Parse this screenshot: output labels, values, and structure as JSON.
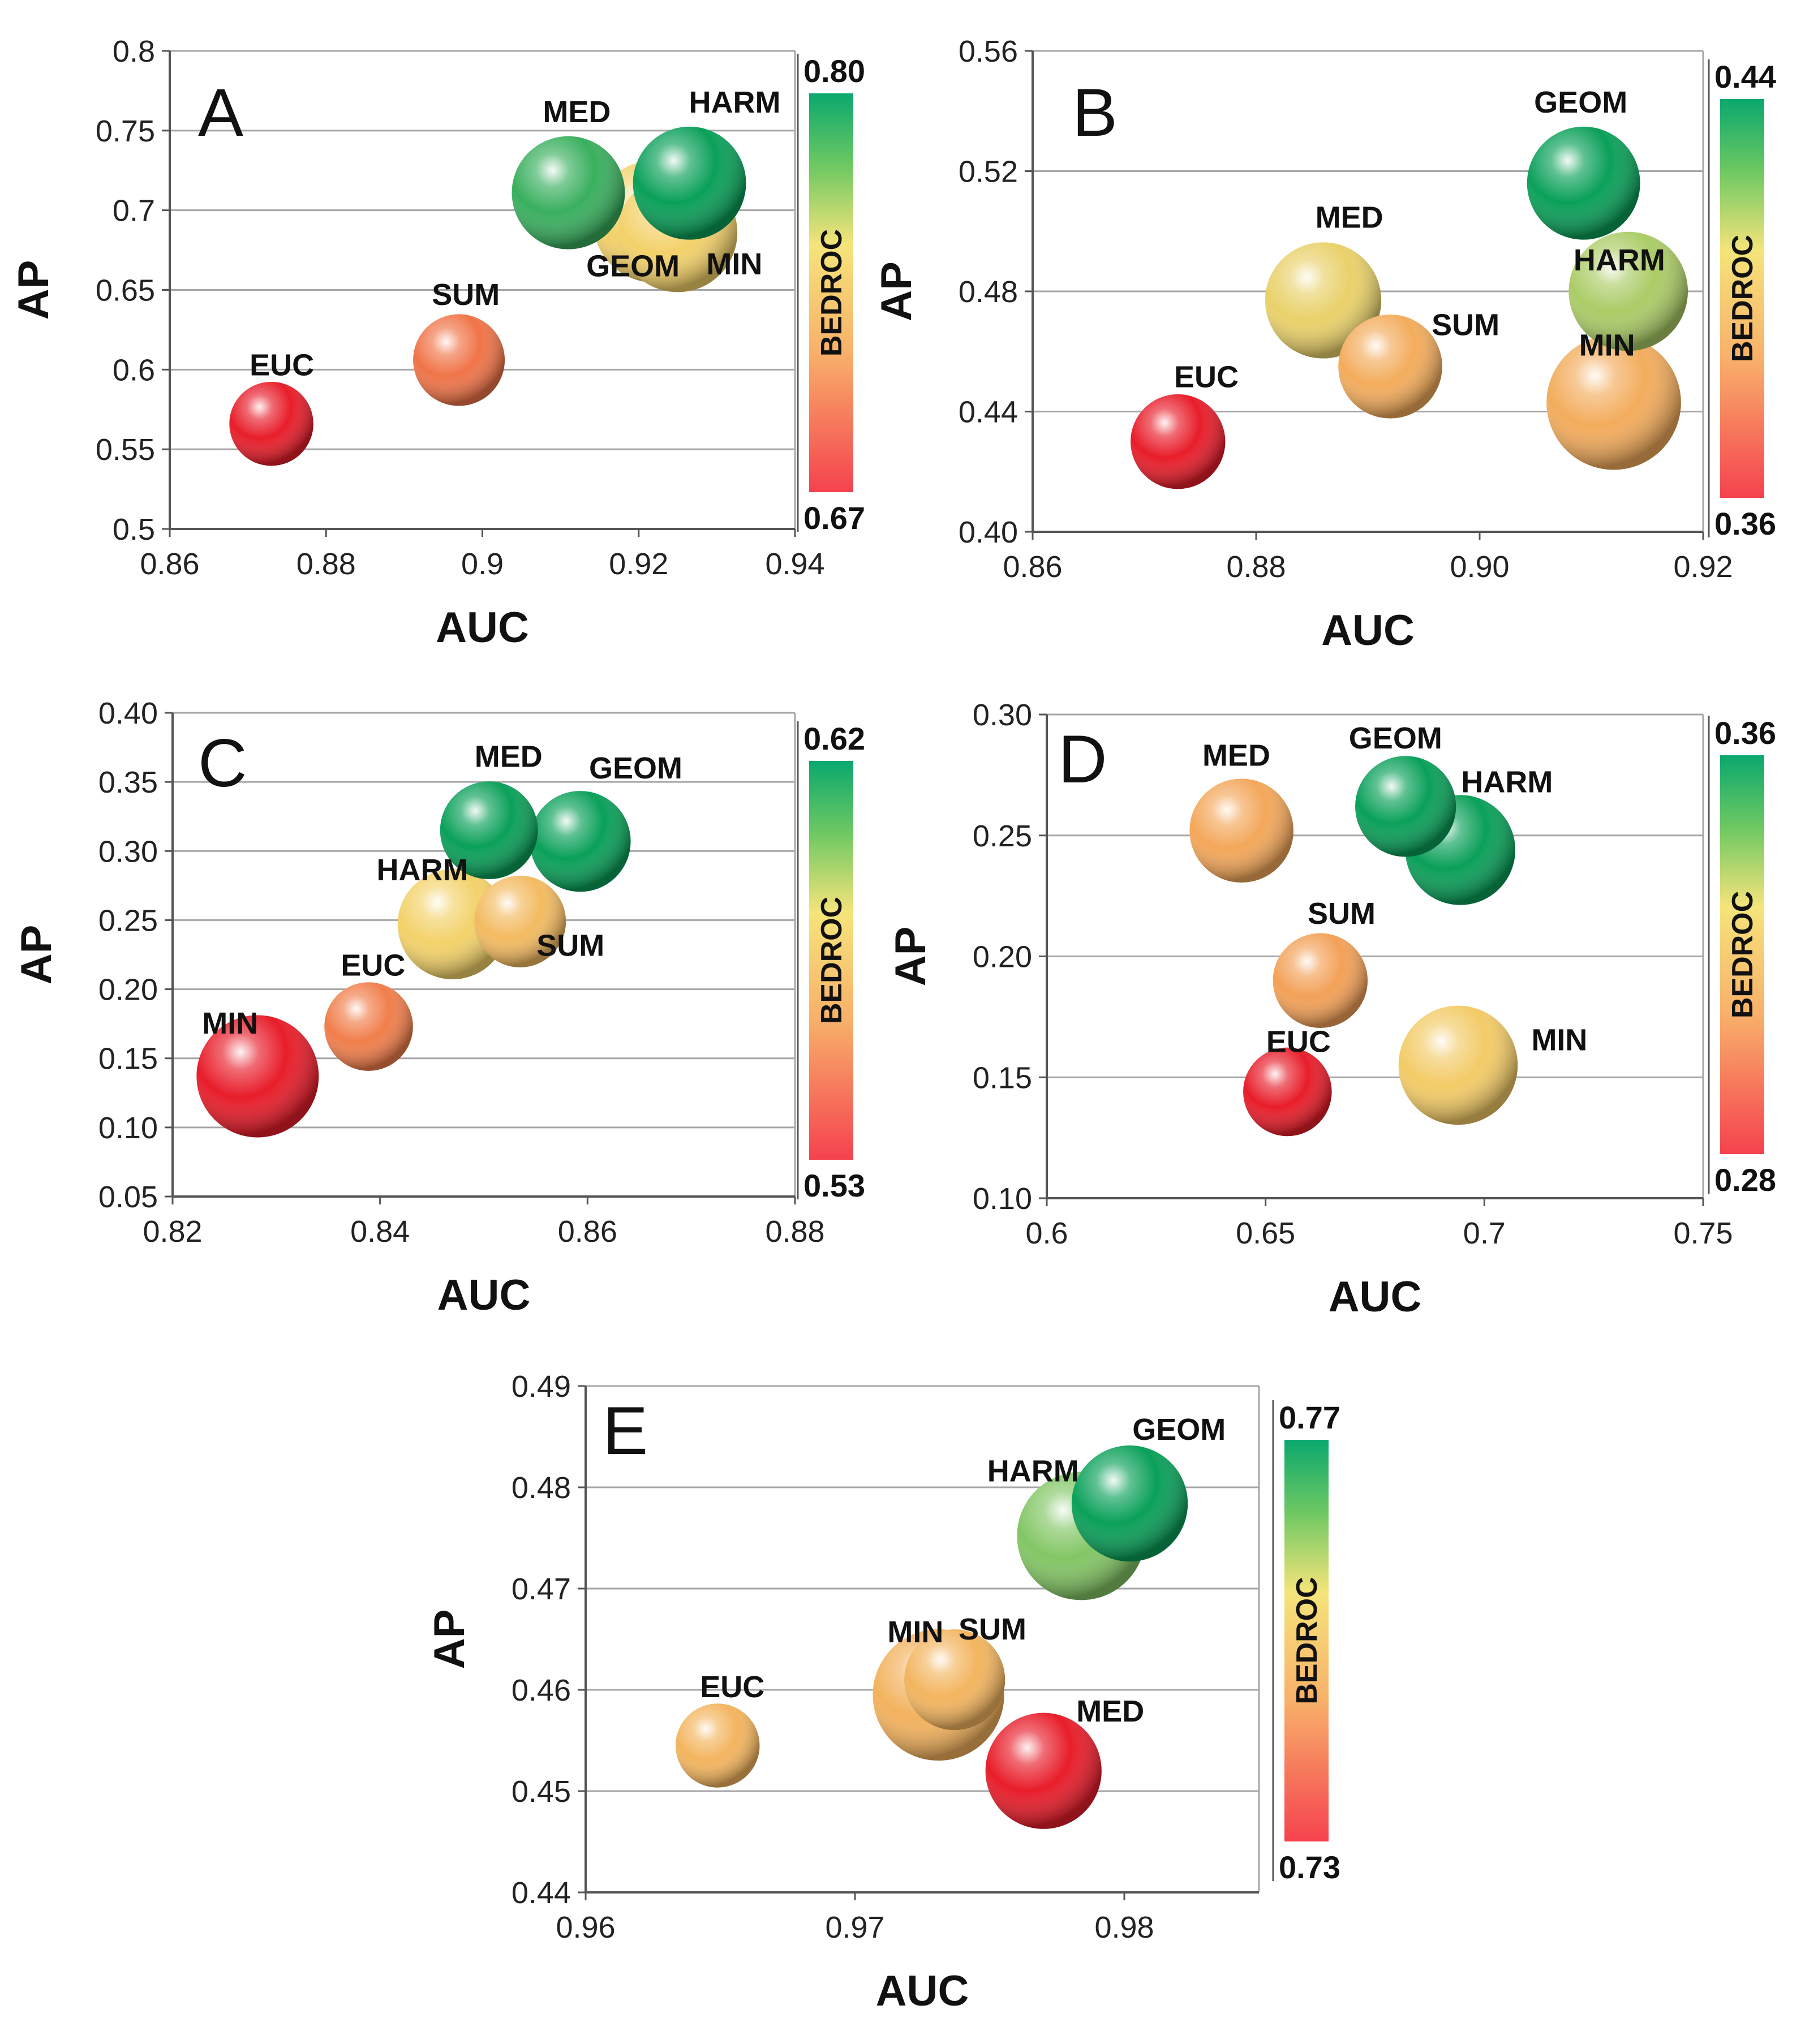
{
  "chart_data": [
    {
      "type": "bubble",
      "panel": "A",
      "xlabel": "AUC",
      "ylabel": "AP",
      "xlim": [
        0.86,
        0.94
      ],
      "ylim": [
        0.5,
        0.8
      ],
      "xticks": [
        "0.86",
        "0.88",
        "0.9",
        "0.92",
        "0.94"
      ],
      "yticks": [
        "0.5",
        "0.55",
        "0.6",
        "0.65",
        "0.7",
        "0.75",
        "0.8"
      ],
      "colorbar": {
        "title": "BEDROC",
        "min": 0.67,
        "max": 0.8,
        "min_label": "0.67",
        "max_label": "0.80"
      },
      "points": [
        {
          "name": "EUC",
          "x": 0.873,
          "y": 0.566,
          "bedroc": 0.67,
          "size": 0.55
        },
        {
          "name": "SUM",
          "x": 0.897,
          "y": 0.606,
          "bedroc": 0.7,
          "size": 0.6
        },
        {
          "name": "MED",
          "x": 0.911,
          "y": 0.711,
          "bedroc": 0.79,
          "size": 0.74
        },
        {
          "name": "GEOM",
          "x": 0.922,
          "y": 0.693,
          "bedroc": 0.745,
          "size": 0.8
        },
        {
          "name": "MIN",
          "x": 0.925,
          "y": 0.686,
          "bedroc": 0.745,
          "size": 0.78
        },
        {
          "name": "HARM",
          "x": 0.9265,
          "y": 0.717,
          "bedroc": 0.8,
          "size": 0.74
        }
      ]
    },
    {
      "type": "bubble",
      "panel": "B",
      "xlabel": "AUC",
      "ylabel": "AP",
      "xlim": [
        0.86,
        0.92
      ],
      "ylim": [
        0.4,
        0.56
      ],
      "xticks": [
        "0.86",
        "0.88",
        "0.90",
        "0.92"
      ],
      "yticks": [
        "0.40",
        "0.44",
        "0.48",
        "0.52",
        "0.56"
      ],
      "colorbar": {
        "title": "BEDROC",
        "min": 0.36,
        "max": 0.44,
        "min_label": "0.36",
        "max_label": "0.44"
      },
      "points": [
        {
          "name": "EUC",
          "x": 0.873,
          "y": 0.43,
          "bedroc": 0.36,
          "size": 0.62
        },
        {
          "name": "SUM",
          "x": 0.892,
          "y": 0.455,
          "bedroc": 0.393,
          "size": 0.68
        },
        {
          "name": "MED",
          "x": 0.886,
          "y": 0.477,
          "bedroc": 0.408,
          "size": 0.76
        },
        {
          "name": "MIN",
          "x": 0.912,
          "y": 0.443,
          "bedroc": 0.393,
          "size": 0.88
        },
        {
          "name": "HARM",
          "x": 0.9133,
          "y": 0.48,
          "bedroc": 0.418,
          "size": 0.78
        },
        {
          "name": "GEOM",
          "x": 0.9093,
          "y": 0.516,
          "bedroc": 0.44,
          "size": 0.74
        }
      ]
    },
    {
      "type": "bubble",
      "panel": "C",
      "xlabel": "AUC",
      "ylabel": "AP",
      "xlim": [
        0.82,
        0.88
      ],
      "ylim": [
        0.05,
        0.4
      ],
      "xticks": [
        "0.82",
        "0.84",
        "0.86",
        "0.88"
      ],
      "yticks": [
        "0.05",
        "0.10",
        "0.15",
        "0.20",
        "0.25",
        "0.30",
        "0.35",
        "0.40"
      ],
      "colorbar": {
        "title": "BEDROC",
        "min": 0.53,
        "max": 0.62,
        "min_label": "0.53",
        "max_label": "0.62"
      },
      "points": [
        {
          "name": "MIN",
          "x": 0.8282,
          "y": 0.137,
          "bedroc": 0.53,
          "size": 0.8
        },
        {
          "name": "EUC",
          "x": 0.8389,
          "y": 0.173,
          "bedroc": 0.553,
          "size": 0.58
        },
        {
          "name": "SUM",
          "x": 0.8535,
          "y": 0.249,
          "bedroc": 0.573,
          "size": 0.6
        },
        {
          "name": "HARM",
          "x": 0.847,
          "y": 0.247,
          "bedroc": 0.582,
          "size": 0.72
        },
        {
          "name": "MED",
          "x": 0.8505,
          "y": 0.315,
          "bedroc": 0.62,
          "size": 0.64
        },
        {
          "name": "GEOM",
          "x": 0.8593,
          "y": 0.307,
          "bedroc": 0.62,
          "size": 0.66
        }
      ]
    },
    {
      "type": "bubble",
      "panel": "D",
      "xlabel": "AUC",
      "ylabel": "AP",
      "xlim": [
        0.6,
        0.75
      ],
      "ylim": [
        0.1,
        0.3
      ],
      "xticks": [
        "0.6",
        "0.65",
        "0.7",
        "0.75"
      ],
      "yticks": [
        "0.10",
        "0.15",
        "0.20",
        "0.25",
        "0.30"
      ],
      "colorbar": {
        "title": "BEDROC",
        "min": 0.28,
        "max": 0.36,
        "min_label": "0.28",
        "max_label": "0.36"
      },
      "points": [
        {
          "name": "EUC",
          "x": 0.655,
          "y": 0.144,
          "bedroc": 0.28,
          "size": 0.58
        },
        {
          "name": "SUM",
          "x": 0.6625,
          "y": 0.19,
          "bedroc": 0.309,
          "size": 0.62
        },
        {
          "name": "MED",
          "x": 0.6445,
          "y": 0.252,
          "bedroc": 0.311,
          "size": 0.68
        },
        {
          "name": "MIN",
          "x": 0.694,
          "y": 0.155,
          "bedroc": 0.324,
          "size": 0.78
        },
        {
          "name": "GEOM",
          "x": 0.682,
          "y": 0.262,
          "bedroc": 0.36,
          "size": 0.66
        },
        {
          "name": "HARM",
          "x": 0.6945,
          "y": 0.244,
          "bedroc": 0.36,
          "size": 0.72
        }
      ]
    },
    {
      "type": "bubble",
      "panel": "E",
      "xlabel": "AUC",
      "ylabel": "AP",
      "xlim": [
        0.96,
        0.985
      ],
      "ylim": [
        0.44,
        0.49
      ],
      "xticks": [
        "0.96",
        "0.97",
        "0.98"
      ],
      "yticks": [
        "0.44",
        "0.45",
        "0.46",
        "0.47",
        "0.48",
        "0.49"
      ],
      "colorbar": {
        "title": "BEDROC",
        "min": 0.73,
        "max": 0.77,
        "min_label": "0.73",
        "max_label": "0.77"
      },
      "points": [
        {
          "name": "EUC",
          "x": 0.9649,
          "y": 0.4545,
          "bedroc": 0.748,
          "size": 0.55
        },
        {
          "name": "MIN",
          "x": 0.9731,
          "y": 0.4595,
          "bedroc": 0.7475,
          "size": 0.86
        },
        {
          "name": "SUM",
          "x": 0.9737,
          "y": 0.461,
          "bedroc": 0.748,
          "size": 0.66
        },
        {
          "name": "MED",
          "x": 0.977,
          "y": 0.452,
          "bedroc": 0.73,
          "size": 0.76
        },
        {
          "name": "GEOM",
          "x": 0.9802,
          "y": 0.4784,
          "bedroc": 0.77,
          "size": 0.76
        },
        {
          "name": "HARM",
          "x": 0.9784,
          "y": 0.4752,
          "bedroc": 0.762,
          "size": 0.84
        }
      ]
    }
  ]
}
